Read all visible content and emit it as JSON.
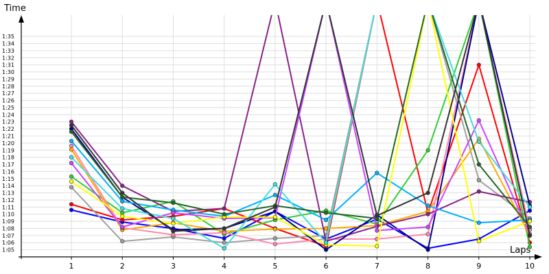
{
  "chart_data": {
    "type": "line",
    "xlabel": "Laps",
    "ylabel": "Time",
    "x": [
      1,
      2,
      3,
      4,
      5,
      6,
      7,
      8,
      9,
      10
    ],
    "xlim": [
      1,
      10
    ],
    "ylim_seconds": [
      64,
      98
    ],
    "grid": true,
    "legend": "none",
    "y_tick_labels": [
      "1:05",
      "1:06",
      "1:07",
      "1:08",
      "1:09",
      "1:10",
      "1:11",
      "1:12",
      "1:13",
      "1:14",
      "1:15",
      "1:16",
      "1:17",
      "1:18",
      "1:19",
      "1:20",
      "1:21",
      "1:22",
      "1:23",
      "1:24",
      "1:25",
      "1:26",
      "1:27",
      "1:28",
      "1:29",
      "1:30",
      "1:31",
      "1:32",
      "1:33",
      "1:34",
      "1:35"
    ],
    "series": [
      {
        "color": "#0000ff",
        "values": [
          "1:10.6",
          "1:08.9",
          "1:08.0",
          "1:06.6",
          "1:10.4",
          "1:06.5",
          "1:09.3",
          "1:05.2",
          "1:06.5",
          "1:10.5"
        ]
      },
      {
        "color": "#ff0000",
        "values": [
          "1:11.4",
          "1:09.2",
          "1:09.7",
          "1:10.8",
          "1:08.0",
          "1:05.5",
          "1:40.0",
          "1:10.2",
          "1:31.0",
          "1:06.0"
        ]
      },
      {
        "color": "#a0a0a0",
        "values": [
          "1:13.8",
          "1:06.2",
          "1:06.8",
          "1:06.0",
          "1:06.6",
          "1:07.0",
          "1:40.0",
          "1:40.0",
          "1:14.8",
          "1:09.4"
        ]
      },
      {
        "color": "#33cc33",
        "values": [
          "1:15.3",
          "1:10.2",
          "1:11.8",
          "1:07.2",
          "1:09.2",
          "1:10.5",
          "1:08.6",
          "1:19.0",
          "1:40.0",
          "1:05.4"
        ]
      },
      {
        "color": "#ffaa00",
        "values": [
          "1:19.1",
          "1:07.8",
          "1:08.8",
          "1:07.6",
          "1:07.9",
          "1:08.0",
          "1:08.4",
          "1:10.4",
          "1:20.6",
          "1:07.0"
        ]
      },
      {
        "color": "#ff88aa",
        "values": [
          "1:19.6",
          "1:08.1",
          "1:07.1",
          "1:07.4",
          "1:05.8",
          "1:06.5",
          "1:06.5",
          "1:07.2",
          "1:40.0",
          "1:07.8"
        ]
      },
      {
        "color": "#882288",
        "values": [
          "1:23.0",
          "1:14.0",
          "1:10.4",
          "1:10.8",
          "1:40.0",
          "1:06.2",
          "1:08.3",
          "1:10.0",
          "1:13.2",
          "1:11.7"
        ]
      },
      {
        "color": "#00008b",
        "values": [
          "1:22.0",
          "1:12.4",
          "1:07.8",
          "1:08.0",
          "1:10.4",
          "1:05.0",
          "1:09.9",
          "1:05.0",
          "1:40.0",
          "1:11.2"
        ]
      },
      {
        "color": "#00b0ff",
        "values": [
          "1:20.3",
          "1:11.8",
          "1:10.6",
          "1:09.7",
          "1:12.7",
          "1:09.2",
          "1:15.8",
          "1:11.2",
          "1:08.8",
          "1:09.2"
        ]
      },
      {
        "color": "#cc44ff",
        "values": [
          "1:17.2",
          "1:08.2",
          "1:10.2",
          "1:09.4",
          "1:09.5",
          "1:40.0",
          "1:07.7",
          "1:08.2",
          "1:23.2",
          "1:07.2"
        ]
      },
      {
        "color": "#ffff00",
        "values": [
          "1:14.6",
          "1:09.7",
          "1:08.7",
          "1:09.6",
          "1:09.6",
          "1:05.7",
          "1:05.5",
          "1:40.0",
          "1:06.2",
          "1:09.0"
        ]
      },
      {
        "color": "#44dddd",
        "values": [
          "1:18.0",
          "1:10.8",
          "1:09.4",
          "1:05.2",
          "1:14.2",
          "1:06.0",
          "1:40.0",
          "1:40.0",
          "1:20.2",
          "1:11.0"
        ]
      },
      {
        "color": "#226622",
        "values": [
          "1:21.6",
          "1:12.4",
          "1:11.6",
          "1:10.0",
          "1:11.2",
          "1:10.2",
          "1:09.4",
          "1:40.0",
          "1:17.0",
          "1:08.2"
        ]
      },
      {
        "color": "#333333",
        "values": [
          "1:22.5",
          "1:13.0",
          "1:07.6",
          "1:08.0",
          "1:11.0",
          "1:40.0",
          "1:09.8",
          "1:13.0",
          "1:40.0",
          "1:07.0"
        ]
      }
    ]
  }
}
